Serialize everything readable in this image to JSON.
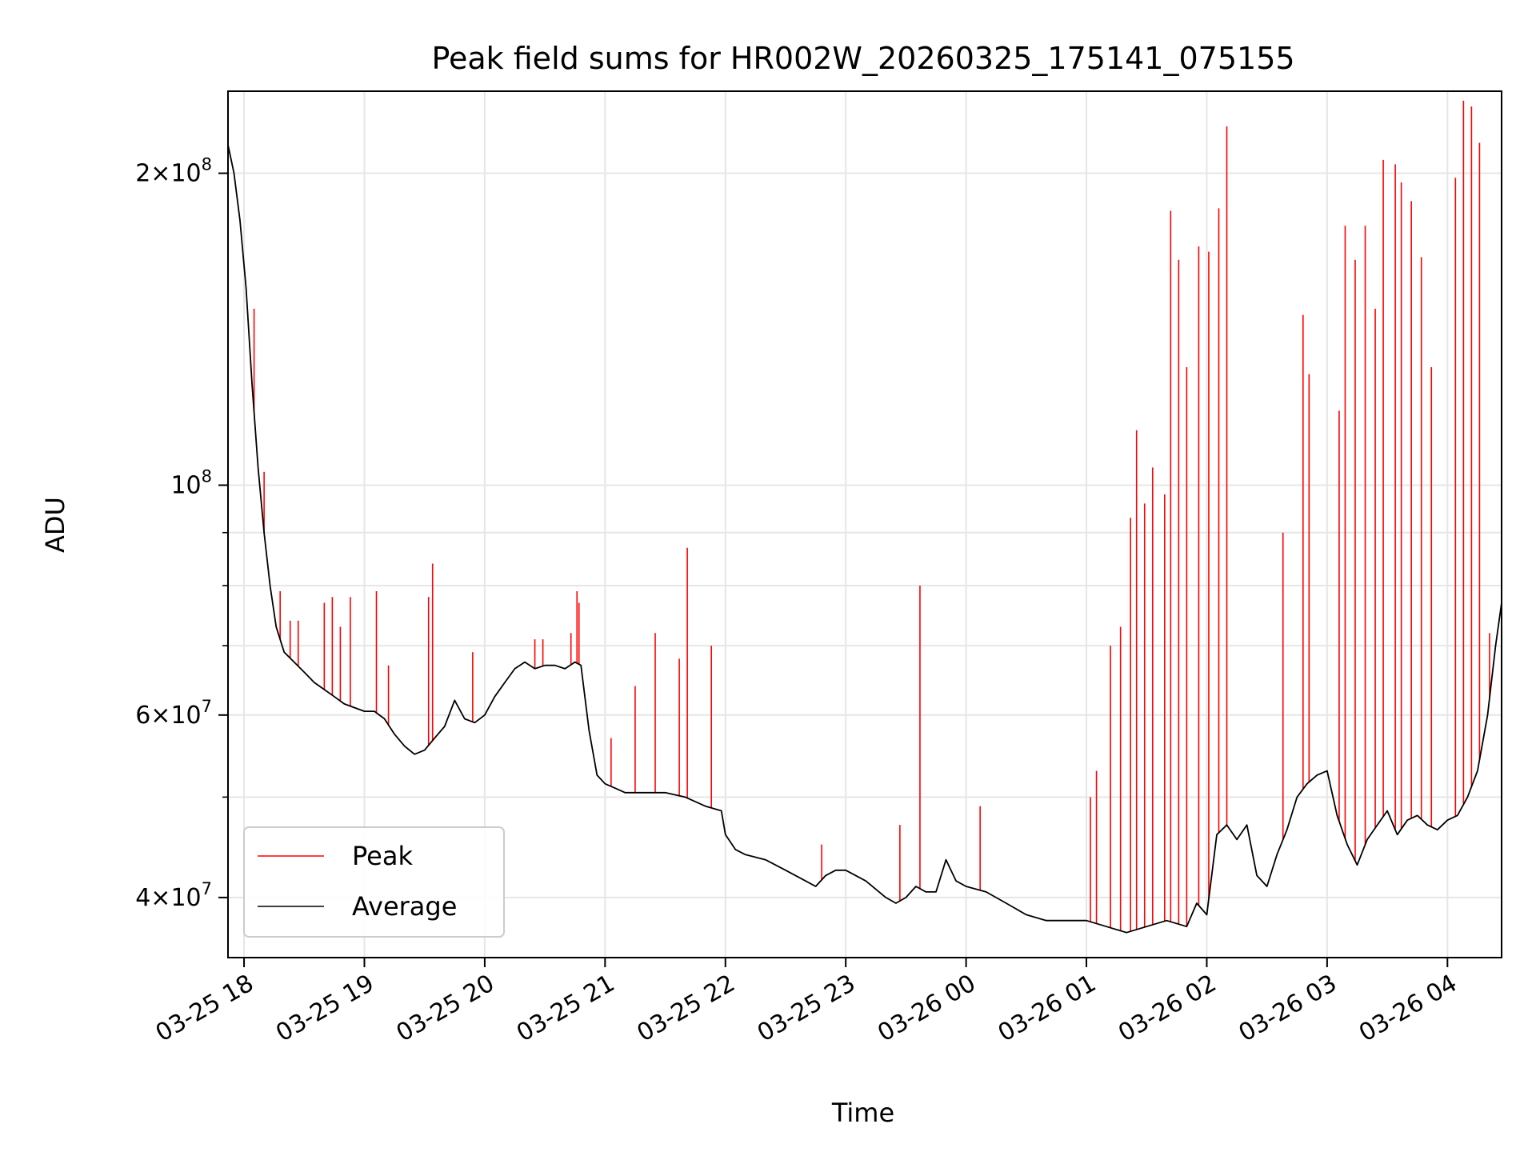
{
  "chart_data": {
    "type": "line",
    "title": "Peak field sums for HR002W_20260325_175141_075155",
    "xlabel": "Time",
    "ylabel": "ADU",
    "yscale": "log",
    "ylim": [
      35000000,
      240000000
    ],
    "xlim": [
      "2026-03-25 17:52",
      "2026-03-26 04:27"
    ],
    "x_ticks": [
      {
        "t": "2026-03-25 18:00",
        "label": "03-25 18"
      },
      {
        "t": "2026-03-25 19:00",
        "label": "03-25 19"
      },
      {
        "t": "2026-03-25 20:00",
        "label": "03-25 20"
      },
      {
        "t": "2026-03-25 21:00",
        "label": "03-25 21"
      },
      {
        "t": "2026-03-25 22:00",
        "label": "03-25 22"
      },
      {
        "t": "2026-03-25 23:00",
        "label": "03-25 23"
      },
      {
        "t": "2026-03-26 00:00",
        "label": "03-26 00"
      },
      {
        "t": "2026-03-26 01:00",
        "label": "03-26 01"
      },
      {
        "t": "2026-03-26 02:00",
        "label": "03-26 02"
      },
      {
        "t": "2026-03-26 03:00",
        "label": "03-26 03"
      },
      {
        "t": "2026-03-26 04:00",
        "label": "03-26 04"
      }
    ],
    "y_major_ticks": [
      {
        "value": 40000000,
        "mant": "4",
        "exp": "7"
      },
      {
        "value": 60000000,
        "mant": "6",
        "exp": "7"
      },
      {
        "value": 100000000,
        "mant": "",
        "exp": "8"
      },
      {
        "value": 200000000,
        "mant": "2",
        "exp": "8"
      }
    ],
    "y_minor_ticks": [
      50000000,
      70000000,
      80000000,
      90000000
    ],
    "grid": true,
    "legend": {
      "position": "lower-left",
      "entries": [
        "Peak",
        "Average"
      ]
    },
    "series": [
      {
        "name": "Average",
        "color": "#000000",
        "points": [
          [
            "2026-03-25 17:52",
            213000000
          ],
          [
            "2026-03-25 17:55",
            200000000
          ],
          [
            "2026-03-25 17:58",
            180000000
          ],
          [
            "2026-03-25 18:01",
            155000000
          ],
          [
            "2026-03-25 18:04",
            125000000
          ],
          [
            "2026-03-25 18:07",
            104000000
          ],
          [
            "2026-03-25 18:10",
            90000000
          ],
          [
            "2026-03-25 18:13",
            80000000
          ],
          [
            "2026-03-25 18:16",
            73000000
          ],
          [
            "2026-03-25 18:20",
            69000000
          ],
          [
            "2026-03-25 18:25",
            67500000
          ],
          [
            "2026-03-25 18:30",
            66000000
          ],
          [
            "2026-03-25 18:35",
            64500000
          ],
          [
            "2026-03-25 18:40",
            63500000
          ],
          [
            "2026-03-25 18:45",
            62500000
          ],
          [
            "2026-03-25 18:50",
            61500000
          ],
          [
            "2026-03-25 18:55",
            61000000
          ],
          [
            "2026-03-25 19:00",
            60500000
          ],
          [
            "2026-03-25 19:05",
            60500000
          ],
          [
            "2026-03-25 19:10",
            59500000
          ],
          [
            "2026-03-25 19:15",
            57500000
          ],
          [
            "2026-03-25 19:20",
            56000000
          ],
          [
            "2026-03-25 19:25",
            55000000
          ],
          [
            "2026-03-25 19:30",
            55500000
          ],
          [
            "2026-03-25 19:35",
            57000000
          ],
          [
            "2026-03-25 19:40",
            58500000
          ],
          [
            "2026-03-25 19:45",
            62000000
          ],
          [
            "2026-03-25 19:50",
            59500000
          ],
          [
            "2026-03-25 19:55",
            59000000
          ],
          [
            "2026-03-25 20:00",
            60000000
          ],
          [
            "2026-03-25 20:05",
            62500000
          ],
          [
            "2026-03-25 20:10",
            64500000
          ],
          [
            "2026-03-25 20:15",
            66500000
          ],
          [
            "2026-03-25 20:20",
            67500000
          ],
          [
            "2026-03-25 20:25",
            66500000
          ],
          [
            "2026-03-25 20:30",
            67000000
          ],
          [
            "2026-03-25 20:35",
            67000000
          ],
          [
            "2026-03-25 20:40",
            66500000
          ],
          [
            "2026-03-25 20:45",
            67500000
          ],
          [
            "2026-03-25 20:48",
            67000000
          ],
          [
            "2026-03-25 20:52",
            58000000
          ],
          [
            "2026-03-25 20:56",
            52500000
          ],
          [
            "2026-03-25 21:00",
            51500000
          ],
          [
            "2026-03-25 21:05",
            51000000
          ],
          [
            "2026-03-25 21:10",
            50500000
          ],
          [
            "2026-03-25 21:20",
            50500000
          ],
          [
            "2026-03-25 21:30",
            50500000
          ],
          [
            "2026-03-25 21:40",
            50000000
          ],
          [
            "2026-03-25 21:50",
            49000000
          ],
          [
            "2026-03-25 21:58",
            48500000
          ],
          [
            "2026-03-25 22:00",
            46000000
          ],
          [
            "2026-03-25 22:05",
            44500000
          ],
          [
            "2026-03-25 22:10",
            44000000
          ],
          [
            "2026-03-25 22:20",
            43500000
          ],
          [
            "2026-03-25 22:30",
            42500000
          ],
          [
            "2026-03-25 22:40",
            41500000
          ],
          [
            "2026-03-25 22:45",
            41000000
          ],
          [
            "2026-03-25 22:50",
            42000000
          ],
          [
            "2026-03-25 22:55",
            42500000
          ],
          [
            "2026-03-25 23:00",
            42500000
          ],
          [
            "2026-03-25 23:10",
            41500000
          ],
          [
            "2026-03-25 23:20",
            40000000
          ],
          [
            "2026-03-25 23:25",
            39500000
          ],
          [
            "2026-03-25 23:30",
            40000000
          ],
          [
            "2026-03-25 23:35",
            41000000
          ],
          [
            "2026-03-25 23:40",
            40500000
          ],
          [
            "2026-03-25 23:45",
            40500000
          ],
          [
            "2026-03-25 23:50",
            43500000
          ],
          [
            "2026-03-25 23:55",
            41500000
          ],
          [
            "2026-03-26 00:00",
            41000000
          ],
          [
            "2026-03-26 00:10",
            40500000
          ],
          [
            "2026-03-26 00:20",
            39500000
          ],
          [
            "2026-03-26 00:30",
            38500000
          ],
          [
            "2026-03-26 00:40",
            38000000
          ],
          [
            "2026-03-26 00:50",
            38000000
          ],
          [
            "2026-03-26 01:00",
            38000000
          ],
          [
            "2026-03-26 01:10",
            37500000
          ],
          [
            "2026-03-26 01:20",
            37000000
          ],
          [
            "2026-03-26 01:30",
            37500000
          ],
          [
            "2026-03-26 01:40",
            38000000
          ],
          [
            "2026-03-26 01:50",
            37500000
          ],
          [
            "2026-03-26 01:55",
            39500000
          ],
          [
            "2026-03-26 02:00",
            38500000
          ],
          [
            "2026-03-26 02:05",
            46000000
          ],
          [
            "2026-03-26 02:10",
            47000000
          ],
          [
            "2026-03-26 02:15",
            45500000
          ],
          [
            "2026-03-26 02:20",
            47000000
          ],
          [
            "2026-03-26 02:25",
            42000000
          ],
          [
            "2026-03-26 02:30",
            41000000
          ],
          [
            "2026-03-26 02:35",
            44000000
          ],
          [
            "2026-03-26 02:40",
            46500000
          ],
          [
            "2026-03-26 02:45",
            50000000
          ],
          [
            "2026-03-26 02:50",
            51500000
          ],
          [
            "2026-03-26 02:55",
            52500000
          ],
          [
            "2026-03-26 03:00",
            53000000
          ],
          [
            "2026-03-26 03:05",
            48000000
          ],
          [
            "2026-03-26 03:10",
            45000000
          ],
          [
            "2026-03-26 03:15",
            43000000
          ],
          [
            "2026-03-26 03:20",
            45500000
          ],
          [
            "2026-03-26 03:25",
            47000000
          ],
          [
            "2026-03-26 03:30",
            48500000
          ],
          [
            "2026-03-26 03:35",
            46000000
          ],
          [
            "2026-03-26 03:40",
            47500000
          ],
          [
            "2026-03-26 03:45",
            48000000
          ],
          [
            "2026-03-26 03:50",
            47000000
          ],
          [
            "2026-03-26 03:55",
            46500000
          ],
          [
            "2026-03-26 04:00",
            47500000
          ],
          [
            "2026-03-26 04:05",
            48000000
          ],
          [
            "2026-03-26 04:10",
            50000000
          ],
          [
            "2026-03-26 04:15",
            53000000
          ],
          [
            "2026-03-26 04:20",
            60000000
          ],
          [
            "2026-03-26 04:24",
            70000000
          ],
          [
            "2026-03-26 04:27",
            77000000
          ]
        ]
      },
      {
        "name": "Peak",
        "color": "#ff0000",
        "spikes": [
          [
            "2026-03-25 18:05",
            148000000
          ],
          [
            "2026-03-25 18:10",
            103000000
          ],
          [
            "2026-03-25 18:18",
            79000000
          ],
          [
            "2026-03-25 18:23",
            74000000
          ],
          [
            "2026-03-25 18:27",
            74000000
          ],
          [
            "2026-03-25 18:40",
            77000000
          ],
          [
            "2026-03-25 18:44",
            78000000
          ],
          [
            "2026-03-25 18:48",
            73000000
          ],
          [
            "2026-03-25 18:53",
            78000000
          ],
          [
            "2026-03-25 19:06",
            79000000
          ],
          [
            "2026-03-25 19:12",
            67000000
          ],
          [
            "2026-03-25 19:32",
            78000000
          ],
          [
            "2026-03-25 19:34",
            84000000
          ],
          [
            "2026-03-25 19:54",
            69000000
          ],
          [
            "2026-03-25 20:25",
            71000000
          ],
          [
            "2026-03-25 20:29",
            71000000
          ],
          [
            "2026-03-25 20:43",
            72000000
          ],
          [
            "2026-03-25 20:46",
            79000000
          ],
          [
            "2026-03-25 20:47",
            77000000
          ],
          [
            "2026-03-25 21:03",
            57000000
          ],
          [
            "2026-03-25 21:15",
            64000000
          ],
          [
            "2026-03-25 21:25",
            72000000
          ],
          [
            "2026-03-25 21:37",
            68000000
          ],
          [
            "2026-03-25 21:41",
            87000000
          ],
          [
            "2026-03-25 21:53",
            70000000
          ],
          [
            "2026-03-25 22:48",
            45000000
          ],
          [
            "2026-03-25 23:27",
            47000000
          ],
          [
            "2026-03-25 23:37",
            80000000
          ],
          [
            "2026-03-26 00:07",
            49000000
          ],
          [
            "2026-03-26 01:02",
            50000000
          ],
          [
            "2026-03-26 01:05",
            53000000
          ],
          [
            "2026-03-26 01:12",
            70000000
          ],
          [
            "2026-03-26 01:17",
            73000000
          ],
          [
            "2026-03-26 01:22",
            93000000
          ],
          [
            "2026-03-26 01:25",
            113000000
          ],
          [
            "2026-03-26 01:29",
            96000000
          ],
          [
            "2026-03-26 01:33",
            104000000
          ],
          [
            "2026-03-26 01:39",
            98000000
          ],
          [
            "2026-03-26 01:42",
            184000000
          ],
          [
            "2026-03-26 01:46",
            165000000
          ],
          [
            "2026-03-26 01:50",
            130000000
          ],
          [
            "2026-03-26 01:56",
            170000000
          ],
          [
            "2026-03-26 02:01",
            168000000
          ],
          [
            "2026-03-26 02:06",
            185000000
          ],
          [
            "2026-03-26 02:10",
            222000000
          ],
          [
            "2026-03-26 02:38",
            90000000
          ],
          [
            "2026-03-26 02:48",
            146000000
          ],
          [
            "2026-03-26 02:51",
            128000000
          ],
          [
            "2026-03-26 03:06",
            118000000
          ],
          [
            "2026-03-26 03:09",
            178000000
          ],
          [
            "2026-03-26 03:14",
            165000000
          ],
          [
            "2026-03-26 03:19",
            178000000
          ],
          [
            "2026-03-26 03:24",
            148000000
          ],
          [
            "2026-03-26 03:28",
            206000000
          ],
          [
            "2026-03-26 03:34",
            204000000
          ],
          [
            "2026-03-26 03:37",
            196000000
          ],
          [
            "2026-03-26 03:42",
            188000000
          ],
          [
            "2026-03-26 03:47",
            166000000
          ],
          [
            "2026-03-26 03:52",
            130000000
          ],
          [
            "2026-03-26 04:04",
            198000000
          ],
          [
            "2026-03-26 04:08",
            235000000
          ],
          [
            "2026-03-26 04:12",
            232000000
          ],
          [
            "2026-03-26 04:16",
            214000000
          ],
          [
            "2026-03-26 04:21",
            72000000
          ]
        ]
      }
    ]
  }
}
